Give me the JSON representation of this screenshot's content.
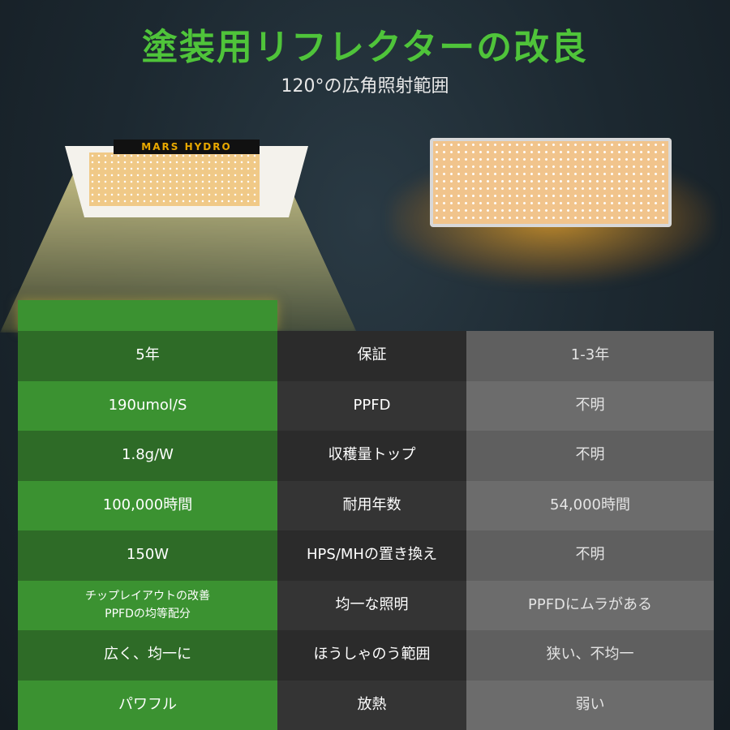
{
  "header": {
    "title": "塗装用リフレクターの改良",
    "subtitle": "120°の広角照射範囲"
  },
  "product": {
    "logo_text": "MARS HYDRO"
  },
  "rows": [
    {
      "ours": "5年",
      "feature": "保証",
      "other": "1-3年"
    },
    {
      "ours": "190umol/S",
      "feature": "PPFD",
      "other": "不明"
    },
    {
      "ours": "1.8g/W",
      "feature": "収穫量トップ",
      "other": "不明"
    },
    {
      "ours": "100,000時間",
      "feature": "耐用年数",
      "other": "54,000時間"
    },
    {
      "ours": "150W",
      "feature": "HPS/MHの置き換え",
      "other": "不明"
    },
    {
      "ours": "チップレイアウトの改善",
      "ours2": "PPFDの均等配分",
      "feature": "均一な照明",
      "other": "PPFDにムラがある"
    },
    {
      "ours": "広く、均一に",
      "feature": "ほうしゃのう範囲",
      "other": "狭い、不均一"
    },
    {
      "ours": "パワフル",
      "feature": "放熱",
      "other": "弱い"
    }
  ],
  "colors": {
    "title": "#4fc43a",
    "green_dark": "#2e6b27",
    "green_light": "#3b9231"
  }
}
